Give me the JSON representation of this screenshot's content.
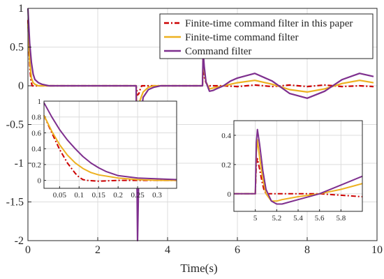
{
  "chart_data": {
    "type": "line",
    "xlabel": "Time(s)",
    "ylabel": "",
    "title": "",
    "xlim": [
      0,
      10
    ],
    "ylim": [
      -2,
      1
    ],
    "xticks": [
      "0",
      "2",
      "4",
      "6",
      "8",
      "10"
    ],
    "yticks": [
      "-2",
      "-1.5",
      "-1",
      "-0.5",
      "0",
      "0.5",
      "1"
    ],
    "grid": true,
    "legend_position": "top-right",
    "series": [
      {
        "name": "Finite-time command filter in this paper",
        "color": "#cc0000",
        "style": "dash-dot",
        "x": [
          0,
          0.03,
          0.06,
          0.09,
          0.12,
          0.2,
          0.4,
          3.1,
          3.14,
          3.18,
          3.22,
          3.26,
          3.35,
          5.0,
          5.02,
          5.05,
          5.1,
          5.15,
          5.2,
          5.3,
          5.6,
          6.0,
          6.5,
          7.0,
          7.5,
          8.0,
          8.5,
          9.0,
          9.5,
          9.9
        ],
        "y": [
          0.85,
          0.45,
          0.2,
          0.06,
          0.0,
          0.0,
          0.0,
          0.0,
          -0.12,
          -0.1,
          -0.04,
          0.0,
          0.0,
          0.0,
          0.24,
          0.12,
          0.04,
          0.01,
          0.0,
          0.0,
          0.0,
          -0.01,
          0.01,
          -0.01,
          0.01,
          -0.01,
          0.01,
          -0.01,
          0.0,
          -0.01
        ]
      },
      {
        "name": "Finite-time command filter",
        "color": "#edb120",
        "style": "solid",
        "x": [
          0,
          0.03,
          0.06,
          0.1,
          0.15,
          0.2,
          0.3,
          0.4,
          3.1,
          3.15,
          3.2,
          3.3,
          3.45,
          3.6,
          5.0,
          5.02,
          5.05,
          5.1,
          5.2,
          5.3,
          5.4,
          5.6,
          5.8,
          6.0,
          6.5,
          7.0,
          7.5,
          8.0,
          8.5,
          9.0,
          9.5,
          9.9
        ],
        "y": [
          0.8,
          0.5,
          0.28,
          0.1,
          0.04,
          0.02,
          0.0,
          0.0,
          0.0,
          -0.8,
          -0.2,
          -0.08,
          -0.02,
          0.0,
          0.0,
          0.37,
          0.2,
          0.05,
          -0.04,
          -0.03,
          -0.02,
          0.0,
          0.02,
          0.04,
          0.07,
          0.02,
          -0.05,
          -0.08,
          -0.04,
          0.03,
          0.07,
          0.04
        ]
      },
      {
        "name": "Command filter",
        "color": "#7e2f8e",
        "style": "solid",
        "x": [
          0,
          0.05,
          0.1,
          0.15,
          0.2,
          0.3,
          0.4,
          0.6,
          3.1,
          3.14,
          3.2,
          3.3,
          3.45,
          3.6,
          3.8,
          5.0,
          5.02,
          5.05,
          5.1,
          5.2,
          5.3,
          5.4,
          5.6,
          5.8,
          6.0,
          6.5,
          7.0,
          7.5,
          8.0,
          8.5,
          9.0,
          9.5,
          9.9
        ],
        "y": [
          1.0,
          0.55,
          0.3,
          0.15,
          0.08,
          0.04,
          0.02,
          0.0,
          0.0,
          -2.0,
          -0.5,
          -0.15,
          -0.05,
          -0.02,
          0.0,
          0.0,
          0.44,
          0.25,
          0.05,
          -0.07,
          -0.06,
          -0.04,
          0.0,
          0.06,
          0.1,
          0.16,
          0.06,
          -0.1,
          -0.16,
          -0.07,
          0.08,
          0.16,
          0.12
        ]
      }
    ],
    "insets": [
      {
        "xlim": [
          0.01,
          0.35
        ],
        "ylim": [
          -0.1,
          1.0
        ],
        "xticks": [
          "0.05",
          "0.1",
          "0.15",
          "0.2",
          "0.25",
          "0.3"
        ],
        "yticks": [
          "0",
          "0.2",
          "0.4",
          "0.6",
          "0.8",
          "1"
        ],
        "series": [
          {
            "x": [
              0.01,
              0.03,
              0.05,
              0.07,
              0.09,
              0.1,
              0.11,
              0.12,
              0.15,
              0.2,
              0.25,
              0.3,
              0.35
            ],
            "y": [
              0.82,
              0.6,
              0.39,
              0.22,
              0.09,
              0.04,
              0.01,
              0.0,
              -0.01,
              0.0,
              0.0,
              0.0,
              0.0
            ]
          },
          {
            "x": [
              0.01,
              0.03,
              0.05,
              0.07,
              0.09,
              0.11,
              0.13,
              0.15,
              0.2,
              0.25,
              0.3,
              0.35
            ],
            "y": [
              0.82,
              0.62,
              0.45,
              0.32,
              0.22,
              0.15,
              0.1,
              0.07,
              0.03,
              0.01,
              0.0,
              0.0
            ]
          },
          {
            "x": [
              0.01,
              0.03,
              0.05,
              0.07,
              0.09,
              0.11,
              0.13,
              0.15,
              0.17,
              0.2,
              0.25,
              0.3,
              0.35
            ],
            "y": [
              0.98,
              0.8,
              0.64,
              0.51,
              0.4,
              0.3,
              0.22,
              0.16,
              0.11,
              0.06,
              0.03,
              0.02,
              0.01
            ]
          }
        ]
      },
      {
        "xlim": [
          4.8,
          6.0
        ],
        "ylim": [
          -0.12,
          0.5
        ],
        "xticks": [
          "5",
          "5.2",
          "5.4",
          "5.6",
          "5.8"
        ],
        "yticks": [
          "0",
          "0.2",
          "0.4"
        ],
        "series": [
          {
            "x": [
              4.8,
              5.0,
              5.01,
              5.02,
              5.04,
              5.06,
              5.08,
              5.1,
              5.2,
              5.4,
              5.6,
              5.8,
              6.0
            ],
            "y": [
              0.0,
              0.0,
              0.2,
              0.24,
              0.17,
              0.09,
              0.03,
              0.0,
              0.0,
              0.0,
              0.0,
              -0.01,
              -0.02
            ]
          },
          {
            "x": [
              4.8,
              5.0,
              5.01,
              5.02,
              5.04,
              5.07,
              5.1,
              5.15,
              5.2,
              5.25,
              5.4,
              5.6,
              5.8,
              6.0
            ],
            "y": [
              0.0,
              0.0,
              0.28,
              0.37,
              0.25,
              0.1,
              0.0,
              -0.05,
              -0.05,
              -0.04,
              -0.02,
              0.0,
              0.03,
              0.07
            ]
          },
          {
            "x": [
              4.8,
              5.0,
              5.01,
              5.02,
              5.04,
              5.07,
              5.1,
              5.15,
              5.2,
              5.25,
              5.3,
              5.4,
              5.6,
              5.8,
              6.0
            ],
            "y": [
              0.0,
              0.0,
              0.35,
              0.44,
              0.34,
              0.16,
              0.03,
              -0.05,
              -0.07,
              -0.07,
              -0.06,
              -0.04,
              0.0,
              0.06,
              0.12
            ]
          }
        ]
      }
    ]
  }
}
